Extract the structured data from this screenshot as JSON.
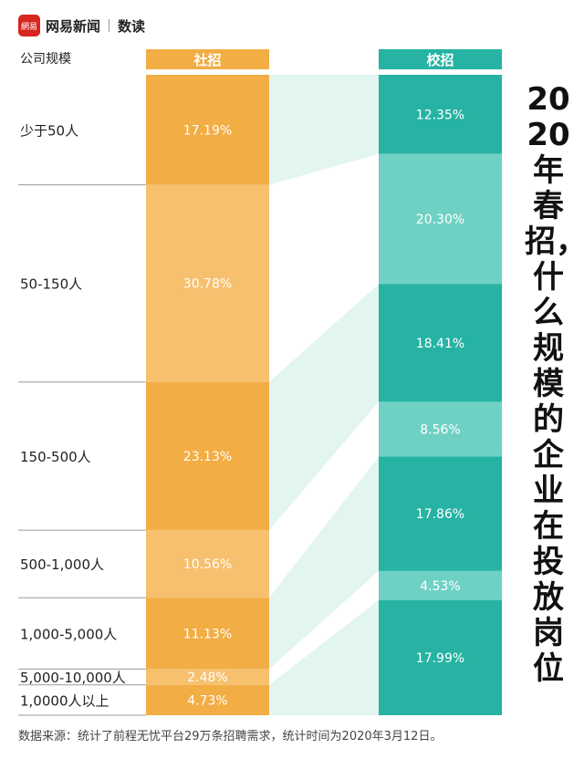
{
  "header": {
    "logo_text": "網易",
    "brand": "网易新闻",
    "sub": "数读"
  },
  "title": "2020年春招，什么规模的企业在投放岗位",
  "source_note": "数据来源：统计了前程无忧平台29万条招聘需求，统计时间为2020年3月12日。",
  "colors": {
    "orange": "#f2ad45",
    "orange_light": "#f6c06e",
    "teal": "#26b3a3",
    "teal_light": "#6fd1c4",
    "band": "#e3f5f0"
  },
  "chart_data": {
    "type": "bar",
    "stacked": true,
    "category_axis_label": "公司规模",
    "categories": [
      "少于50人",
      "50-150人",
      "150-500人",
      "500-1,000人",
      "1,000-5,000人",
      "5,000-10,000人",
      "10000人以上"
    ],
    "category_label_texts": [
      "少于50人",
      "50-150人",
      "150-500人",
      "500-1,000人",
      "1,000-5,000人",
      "5,000-10,000人",
      "1,0000人以上"
    ],
    "series": [
      {
        "name": "社招",
        "values": [
          17.19,
          30.78,
          23.13,
          10.56,
          11.13,
          2.48,
          4.73
        ],
        "labels": [
          "17.19%",
          "30.78%",
          "23.13%",
          "10.56%",
          "11.13%",
          "2.48%",
          "4.73%"
        ]
      },
      {
        "name": "校招",
        "values": [
          12.35,
          20.3,
          18.41,
          8.56,
          17.86,
          4.53,
          17.99
        ],
        "labels": [
          "12.35%",
          "20.30%",
          "18.41%",
          "8.56%",
          "17.86%",
          "4.53%",
          "17.99%"
        ]
      }
    ],
    "unit": "%"
  }
}
